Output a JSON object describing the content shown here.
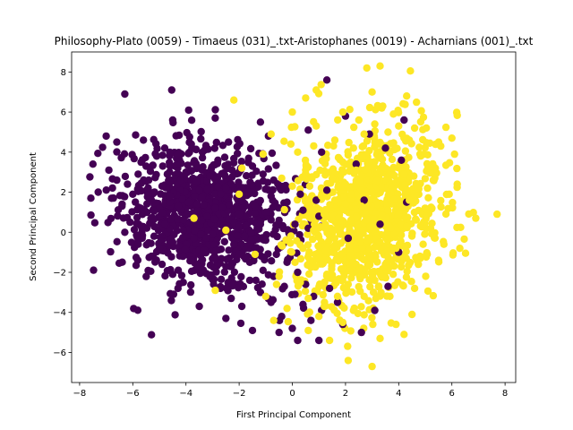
{
  "chart_data": {
    "type": "scatter",
    "title": "Philosophy-Plato (0059) - Timaeus (031)_.txt-Aristophanes (0019) - Acharnians (001)_.txt",
    "xlabel": "First Principal Component",
    "ylabel": "Second Principal Component",
    "xlim": [
      -8.3,
      8.4
    ],
    "ylim": [
      -7.5,
      9.0
    ],
    "xticks": [
      -8,
      -6,
      -4,
      -2,
      0,
      2,
      4,
      6,
      8
    ],
    "yticks": [
      -6,
      -4,
      -2,
      0,
      2,
      4,
      6,
      8
    ],
    "grid": false,
    "legend": "none",
    "colors": {
      "class0": "#440154",
      "class1": "#fde725"
    },
    "series": [
      {
        "cluster_center": [
          -3.2,
          0.8
        ],
        "points": [
          [
            -6.3,
            6.9
          ],
          [
            -7.5,
            3.4
          ],
          [
            -7.0,
            4.8
          ],
          [
            -6.6,
            4.5
          ],
          [
            -5.6,
            4.6
          ],
          [
            -4.5,
            5.6
          ],
          [
            -3.9,
            6.1
          ],
          [
            -2.9,
            5.7
          ],
          [
            -1.2,
            5.5
          ],
          [
            -0.9,
            4.8
          ],
          [
            -6.9,
            3.1
          ],
          [
            -6.6,
            2.6
          ],
          [
            -6.2,
            2.4
          ],
          [
            -5.8,
            2.9
          ],
          [
            -5.5,
            3.3
          ],
          [
            -5.1,
            3.8
          ],
          [
            -4.8,
            4.2
          ],
          [
            -4.3,
            3.9
          ],
          [
            -3.8,
            4.4
          ],
          [
            -3.3,
            4.1
          ],
          [
            -2.8,
            3.6
          ],
          [
            -2.4,
            4.5
          ],
          [
            -2.0,
            3.0
          ],
          [
            -1.5,
            3.3
          ],
          [
            -1.1,
            2.9
          ],
          [
            -0.7,
            2.6
          ],
          [
            -0.3,
            2.2
          ],
          [
            0.3,
            1.9
          ],
          [
            0.9,
            1.6
          ],
          [
            1.3,
            2.1
          ],
          [
            -7.3,
            2.0
          ],
          [
            -6.8,
            1.7
          ],
          [
            -6.4,
            1.4
          ],
          [
            -6.0,
            1.9
          ],
          [
            -5.7,
            1.2
          ],
          [
            -5.3,
            1.6
          ],
          [
            -4.9,
            2.3
          ],
          [
            -4.6,
            1.8
          ],
          [
            -4.2,
            2.6
          ],
          [
            -3.9,
            1.5
          ],
          [
            -3.5,
            2.1
          ],
          [
            -3.1,
            2.8
          ],
          [
            -2.7,
            1.9
          ],
          [
            -2.3,
            2.4
          ],
          [
            -1.9,
            1.7
          ],
          [
            -1.4,
            1.3
          ],
          [
            -1.0,
            1.0
          ],
          [
            -0.5,
            0.6
          ],
          [
            0.1,
            0.4
          ],
          [
            0.6,
            0.2
          ],
          [
            -6.1,
            0.5
          ],
          [
            -5.6,
            0.2
          ],
          [
            -5.2,
            -0.2
          ],
          [
            -4.8,
            0.4
          ],
          [
            -4.5,
            -0.5
          ],
          [
            -4.1,
            0.1
          ],
          [
            -3.7,
            -0.3
          ],
          [
            -3.4,
            0.6
          ],
          [
            -3.0,
            -0.1
          ],
          [
            -2.6,
            0.3
          ],
          [
            -2.2,
            -0.6
          ],
          [
            -1.8,
            -0.2
          ],
          [
            -1.4,
            -0.8
          ],
          [
            -1.0,
            -0.4
          ],
          [
            -0.6,
            -1.1
          ],
          [
            -0.2,
            -1.5
          ],
          [
            0.2,
            -2.0
          ],
          [
            0.5,
            -2.6
          ],
          [
            0.8,
            -3.2
          ],
          [
            1.1,
            -3.9
          ],
          [
            -5.3,
            -1.2
          ],
          [
            -4.9,
            -1.6
          ],
          [
            -4.5,
            -2.1
          ],
          [
            -4.1,
            -2.5
          ],
          [
            -3.8,
            -1.4
          ],
          [
            -3.4,
            -1.9
          ],
          [
            -3.0,
            -2.3
          ],
          [
            -2.7,
            -2.8
          ],
          [
            -2.3,
            -3.3
          ],
          [
            -1.9,
            -3.7
          ],
          [
            -1.6,
            -2.4
          ],
          [
            -1.2,
            -3.0
          ],
          [
            -0.8,
            -3.5
          ],
          [
            -0.4,
            -4.2
          ],
          [
            0.0,
            -4.8
          ],
          [
            0.2,
            -5.4
          ],
          [
            1.0,
            -5.4
          ],
          [
            0.7,
            -4.4
          ],
          [
            -0.5,
            -5.0
          ],
          [
            -1.5,
            -4.9
          ],
          [
            -2.5,
            -4.3
          ],
          [
            -3.5,
            -3.7
          ],
          [
            -4.3,
            -2.8
          ],
          [
            -5.0,
            -0.8
          ],
          [
            -5.8,
            -0.6
          ],
          [
            -6.3,
            0.0
          ],
          [
            -3.2,
            0.8
          ],
          [
            -2.9,
            1.2
          ],
          [
            -2.0,
            0.9
          ],
          [
            -1.2,
            0.4
          ],
          [
            -4.0,
            3.0
          ],
          [
            -3.6,
            3.3
          ],
          [
            -4.7,
            2.9
          ],
          [
            -5.4,
            2.6
          ],
          [
            -2.5,
            2.2
          ],
          [
            -1.7,
            2.0
          ],
          [
            -0.8,
            1.8
          ],
          [
            -0.2,
            1.5
          ],
          [
            0.4,
            1.1
          ],
          [
            1.0,
            0.8
          ],
          [
            -3.3,
            -0.9
          ],
          [
            -2.9,
            -1.3
          ],
          [
            -2.5,
            -1.7
          ],
          [
            -2.0,
            -1.1
          ],
          [
            -1.6,
            -1.5
          ],
          [
            -1.1,
            -1.9
          ],
          [
            -0.7,
            -2.2
          ],
          [
            -0.3,
            -2.7
          ],
          [
            0.1,
            -3.1
          ],
          [
            0.4,
            -3.6
          ],
          [
            1.4,
            -2.8
          ],
          [
            1.7,
            -3.5
          ],
          [
            1.9,
            -4.6
          ],
          [
            2.6,
            -5.0
          ],
          [
            3.1,
            -3.9
          ],
          [
            3.6,
            -2.7
          ],
          [
            4.0,
            -1.0
          ],
          [
            4.3,
            1.5
          ],
          [
            4.1,
            3.6
          ],
          [
            4.2,
            5.6
          ],
          [
            2.4,
            3.4
          ],
          [
            2.9,
            4.9
          ],
          [
            2.0,
            5.8
          ],
          [
            1.3,
            7.6
          ],
          [
            0.6,
            5.1
          ],
          [
            1.1,
            4.0
          ],
          [
            3.5,
            4.2
          ],
          [
            2.7,
            1.6
          ],
          [
            3.3,
            0.4
          ],
          [
            2.1,
            -0.3
          ]
        ]
      },
      {
        "cluster_center": [
          2.8,
          0.8
        ],
        "points": [
          [
            2.8,
            8.2
          ],
          [
            3.3,
            8.3
          ],
          [
            3.0,
            7.0
          ],
          [
            0.9,
            7.1
          ],
          [
            0.5,
            6.7
          ],
          [
            4.3,
            6.8
          ],
          [
            1.9,
            6.0
          ],
          [
            0.0,
            6.0
          ],
          [
            3.8,
            5.9
          ],
          [
            -2.2,
            6.6
          ],
          [
            -3.7,
            0.7
          ],
          [
            -2.5,
            0.1
          ],
          [
            -2.9,
            -2.9
          ],
          [
            -1.0,
            -3.2
          ],
          [
            -0.7,
            -4.4
          ],
          [
            -1.9,
            3.2
          ],
          [
            -2.0,
            1.9
          ],
          [
            -0.8,
            4.9
          ],
          [
            -1.1,
            3.9
          ],
          [
            -1.4,
            -1.1
          ],
          [
            7.7,
            0.9
          ],
          [
            6.9,
            0.7
          ],
          [
            6.2,
            2.4
          ],
          [
            5.9,
            1.9
          ],
          [
            5.5,
            4.5
          ],
          [
            6.0,
            4.7
          ],
          [
            6.1,
            3.9
          ],
          [
            5.3,
            2.6
          ],
          [
            5.2,
            0.2
          ],
          [
            5.7,
            -0.6
          ],
          [
            6.3,
            -0.8
          ],
          [
            5.5,
            -1.4
          ],
          [
            4.8,
            -1.2
          ],
          [
            4.6,
            -2.8
          ],
          [
            4.5,
            -4.1
          ],
          [
            4.2,
            -5.1
          ],
          [
            3.9,
            -4.6
          ],
          [
            3.3,
            -5.3
          ],
          [
            3.0,
            -6.7
          ],
          [
            2.1,
            -6.4
          ],
          [
            1.4,
            -5.4
          ],
          [
            1.0,
            -4.2
          ],
          [
            0.6,
            -3.3
          ],
          [
            0.3,
            -2.5
          ],
          [
            0.1,
            -1.5
          ],
          [
            0.4,
            -0.8
          ],
          [
            0.8,
            0.1
          ],
          [
            1.2,
            0.9
          ],
          [
            1.6,
            1.6
          ],
          [
            2.0,
            2.4
          ],
          [
            2.4,
            3.1
          ],
          [
            2.8,
            3.8
          ],
          [
            3.2,
            4.4
          ],
          [
            3.6,
            5.0
          ],
          [
            4.0,
            5.3
          ],
          [
            4.4,
            4.6
          ],
          [
            4.8,
            3.9
          ],
          [
            5.1,
            3.2
          ],
          [
            4.7,
            2.3
          ],
          [
            4.4,
            1.6
          ],
          [
            4.0,
            0.9
          ],
          [
            3.7,
            0.2
          ],
          [
            3.3,
            -0.5
          ],
          [
            2.9,
            -1.2
          ],
          [
            2.5,
            -1.9
          ],
          [
            2.1,
            -2.6
          ],
          [
            1.7,
            -3.2
          ],
          [
            1.3,
            -2.1
          ],
          [
            1.0,
            -1.3
          ],
          [
            0.7,
            0.7
          ],
          [
            1.1,
            1.8
          ],
          [
            1.5,
            2.7
          ],
          [
            1.9,
            3.5
          ],
          [
            2.3,
            4.2
          ],
          [
            2.7,
            4.9
          ],
          [
            3.1,
            5.4
          ],
          [
            3.5,
            3.2
          ],
          [
            3.9,
            2.5
          ],
          [
            4.3,
            0.3
          ],
          [
            3.9,
            -0.8
          ],
          [
            3.5,
            -1.6
          ],
          [
            3.1,
            -2.4
          ],
          [
            2.7,
            -3.2
          ],
          [
            2.3,
            -3.9
          ],
          [
            1.9,
            -4.5
          ],
          [
            1.5,
            -1.0
          ],
          [
            1.8,
            -0.1
          ],
          [
            2.2,
            0.6
          ],
          [
            2.6,
            1.3
          ],
          [
            3.0,
            2.0
          ],
          [
            0.2,
            4.0
          ],
          [
            0.5,
            3.1
          ],
          [
            0.0,
            2.3
          ],
          [
            -0.4,
            2.7
          ],
          [
            0.9,
            5.3
          ],
          [
            1.6,
            4.6
          ],
          [
            2.5,
            5.6
          ],
          [
            3.4,
            6.3
          ],
          [
            4.6,
            5.2
          ],
          [
            5.0,
            1.2
          ],
          [
            -0.5,
            -2.2
          ],
          [
            -0.2,
            -3.8
          ],
          [
            0.6,
            -4.9
          ],
          [
            1.2,
            -3.7
          ],
          [
            2.0,
            -1.5
          ],
          [
            2.8,
            -0.4
          ],
          [
            3.6,
            1.1
          ],
          [
            4.2,
            2.9
          ],
          [
            3.3,
            3.7
          ],
          [
            2.2,
            1.9
          ]
        ]
      }
    ]
  }
}
